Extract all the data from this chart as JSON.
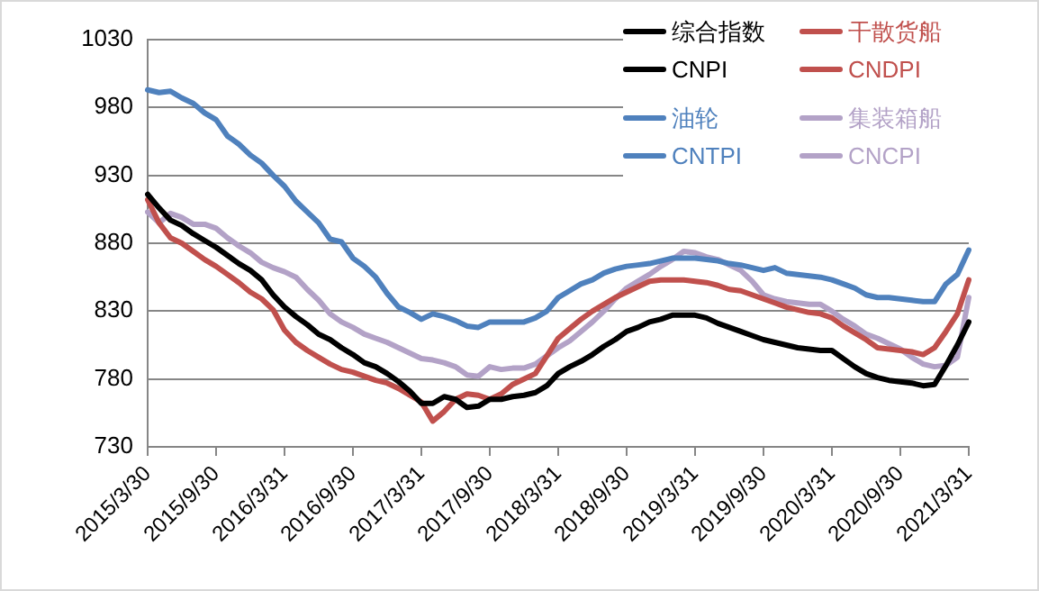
{
  "chart_data": {
    "type": "line",
    "categories": [
      "2015/3/30",
      null,
      null,
      null,
      null,
      null,
      "2015/9/30",
      null,
      null,
      null,
      null,
      null,
      "2016/3/31",
      null,
      null,
      null,
      null,
      null,
      "2016/9/30",
      null,
      null,
      null,
      null,
      null,
      "2017/3/31",
      null,
      null,
      null,
      null,
      null,
      "2017/9/30",
      null,
      null,
      null,
      null,
      null,
      "2018/3/31",
      null,
      null,
      null,
      null,
      null,
      "2018/9/30",
      null,
      null,
      null,
      null,
      null,
      "2019/3/31",
      null,
      null,
      null,
      null,
      null,
      "2019/9/30",
      null,
      null,
      null,
      null,
      null,
      "2020/3/31",
      null,
      null,
      null,
      null,
      null,
      "2020/9/30",
      null,
      null,
      null,
      null,
      null,
      "2021/3/31"
    ],
    "series": [
      {
        "name": "综合指数 CNPI",
        "color": "#000000",
        "values": [
          916,
          906,
          897,
          893,
          887,
          882,
          877,
          871,
          865,
          860,
          853,
          842,
          833,
          826,
          820,
          813,
          809,
          803,
          798,
          792,
          789,
          784,
          778,
          771,
          762,
          762,
          767,
          765,
          759,
          760,
          765,
          765,
          767,
          768,
          770,
          775,
          784,
          789,
          793,
          798,
          804,
          809,
          815,
          818,
          822,
          824,
          827,
          827,
          827,
          825,
          821,
          818,
          815,
          812,
          809,
          807,
          805,
          803,
          802,
          801,
          801,
          795,
          789,
          784,
          781,
          779,
          778,
          777,
          775,
          776,
          790,
          805,
          822
        ]
      },
      {
        "name": "干散货船 CNDPI",
        "color": "#c0504d",
        "values": [
          912,
          895,
          884,
          880,
          874,
          868,
          863,
          857,
          851,
          844,
          839,
          831,
          816,
          807,
          801,
          796,
          791,
          787,
          785,
          782,
          779,
          777,
          773,
          768,
          763,
          749,
          756,
          765,
          769,
          768,
          765,
          769,
          776,
          780,
          784,
          797,
          810,
          817,
          824,
          830,
          835,
          840,
          844,
          848,
          852,
          853,
          853,
          853,
          852,
          851,
          849,
          846,
          845,
          842,
          839,
          836,
          833,
          831,
          829,
          828,
          825,
          819,
          814,
          809,
          803,
          802,
          801,
          800,
          798,
          803,
          815,
          828,
          853
        ]
      },
      {
        "name": "油轮 CNTPI",
        "color": "#4f81bd",
        "values": [
          993,
          991,
          992,
          987,
          983,
          976,
          971,
          959,
          953,
          945,
          939,
          930,
          922,
          911,
          903,
          895,
          883,
          881,
          869,
          863,
          855,
          843,
          833,
          829,
          824,
          828,
          826,
          823,
          819,
          818,
          822,
          822,
          822,
          822,
          825,
          830,
          840,
          845,
          850,
          853,
          858,
          861,
          863,
          864,
          865,
          867,
          869,
          869,
          869,
          868,
          867,
          865,
          864,
          862,
          860,
          862,
          858,
          857,
          856,
          855,
          853,
          850,
          847,
          842,
          840,
          840,
          839,
          838,
          837,
          837,
          850,
          857,
          875
        ]
      },
      {
        "name": "集装箱船 CNCPI",
        "color": "#b3a2c7",
        "values": [
          903,
          895,
          902,
          899,
          894,
          894,
          891,
          884,
          878,
          873,
          866,
          862,
          859,
          855,
          846,
          838,
          828,
          822,
          818,
          813,
          810,
          807,
          803,
          799,
          795,
          794,
          792,
          789,
          783,
          782,
          789,
          787,
          788,
          788,
          791,
          797,
          803,
          808,
          815,
          822,
          830,
          839,
          847,
          852,
          857,
          863,
          868,
          874,
          873,
          870,
          868,
          864,
          860,
          852,
          842,
          839,
          837,
          836,
          835,
          835,
          830,
          824,
          819,
          813,
          810,
          806,
          802,
          796,
          791,
          789,
          790,
          796,
          840
        ]
      }
    ],
    "ylim": [
      730,
      1030
    ],
    "yticks": [
      730,
      780,
      830,
      880,
      930,
      980,
      1030
    ],
    "grid": "y",
    "legend": "top right",
    "marker": "none",
    "line_style": "solid"
  }
}
